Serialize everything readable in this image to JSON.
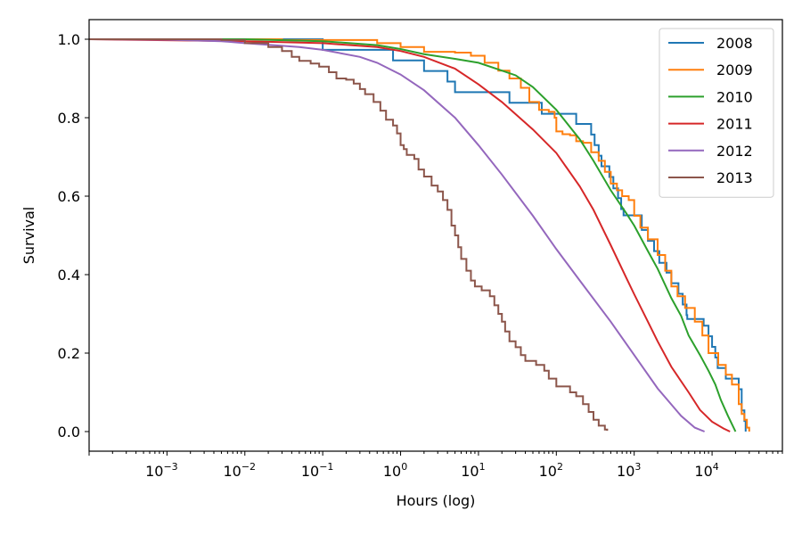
{
  "chart_data": {
    "type": "line",
    "title": "",
    "xlabel": "Hours (log)",
    "ylabel": "Survival",
    "xscale": "log",
    "xlim": [
      0.0001,
      80000
    ],
    "ylim": [
      -0.05,
      1.05
    ],
    "xticks": [
      {
        "value": 0.001,
        "base": "10",
        "exp": "−3"
      },
      {
        "value": 0.01,
        "base": "10",
        "exp": "−2"
      },
      {
        "value": 0.1,
        "base": "10",
        "exp": "−1"
      },
      {
        "value": 1,
        "base": "10",
        "exp": "0"
      },
      {
        "value": 10,
        "base": "10",
        "exp": "1"
      },
      {
        "value": 100,
        "base": "10",
        "exp": "2"
      },
      {
        "value": 1000,
        "base": "10",
        "exp": "3"
      },
      {
        "value": 10000,
        "base": "10",
        "exp": "4"
      }
    ],
    "yticks": [
      {
        "value": 0.0,
        "label": "0.0"
      },
      {
        "value": 0.2,
        "label": "0.2"
      },
      {
        "value": 0.4,
        "label": "0.4"
      },
      {
        "value": 0.6,
        "label": "0.6"
      },
      {
        "value": 0.8,
        "label": "0.8"
      },
      {
        "value": 1.0,
        "label": "1.0"
      }
    ],
    "grid": false,
    "legend_position": "top-right",
    "series": [
      {
        "name": "2008",
        "color": "#1f77b4",
        "step": true,
        "points": [
          [
            0.0001,
            1.0
          ],
          [
            0.1,
            1.0
          ],
          [
            0.1,
            0.973
          ],
          [
            0.8,
            0.973
          ],
          [
            0.8,
            0.946
          ],
          [
            2,
            0.946
          ],
          [
            2,
            0.919
          ],
          [
            4,
            0.919
          ],
          [
            4,
            0.892
          ],
          [
            5,
            0.892
          ],
          [
            5,
            0.865
          ],
          [
            25,
            0.865
          ],
          [
            25,
            0.838
          ],
          [
            65,
            0.838
          ],
          [
            65,
            0.81
          ],
          [
            110,
            0.81
          ],
          [
            110,
            0.81
          ],
          [
            180,
            0.81
          ],
          [
            180,
            0.784
          ],
          [
            280,
            0.784
          ],
          [
            280,
            0.757
          ],
          [
            310,
            0.757
          ],
          [
            310,
            0.73
          ],
          [
            350,
            0.73
          ],
          [
            350,
            0.703
          ],
          [
            380,
            0.703
          ],
          [
            380,
            0.676
          ],
          [
            480,
            0.676
          ],
          [
            480,
            0.649
          ],
          [
            540,
            0.649
          ],
          [
            540,
            0.62
          ],
          [
            620,
            0.62
          ],
          [
            620,
            0.595
          ],
          [
            680,
            0.595
          ],
          [
            680,
            0.567
          ],
          [
            730,
            0.567
          ],
          [
            730,
            0.551
          ],
          [
            1250,
            0.551
          ],
          [
            1250,
            0.514
          ],
          [
            1500,
            0.514
          ],
          [
            1500,
            0.486
          ],
          [
            1800,
            0.486
          ],
          [
            1800,
            0.46
          ],
          [
            2100,
            0.46
          ],
          [
            2100,
            0.43
          ],
          [
            2600,
            0.43
          ],
          [
            2600,
            0.405
          ],
          [
            3000,
            0.405
          ],
          [
            3000,
            0.378
          ],
          [
            3700,
            0.378
          ],
          [
            3700,
            0.351
          ],
          [
            4200,
            0.351
          ],
          [
            4200,
            0.324
          ],
          [
            4700,
            0.324
          ],
          [
            4700,
            0.297
          ],
          [
            4800,
            0.297
          ],
          [
            4800,
            0.287
          ],
          [
            7800,
            0.287
          ],
          [
            7800,
            0.27
          ],
          [
            9000,
            0.27
          ],
          [
            9000,
            0.243
          ],
          [
            10000,
            0.243
          ],
          [
            10000,
            0.216
          ],
          [
            11000,
            0.216
          ],
          [
            11000,
            0.189
          ],
          [
            11800,
            0.189
          ],
          [
            11800,
            0.162
          ],
          [
            15000,
            0.162
          ],
          [
            15000,
            0.135
          ],
          [
            22000,
            0.135
          ],
          [
            22000,
            0.108
          ],
          [
            24000,
            0.108
          ],
          [
            24000,
            0.054
          ],
          [
            26000,
            0.054
          ],
          [
            26000,
            0.027
          ],
          [
            27000,
            0.027
          ],
          [
            27000,
            0.0
          ]
        ]
      },
      {
        "name": "2009",
        "color": "#ff7f0e",
        "step": true,
        "points": [
          [
            0.0001,
            1.0
          ],
          [
            0.02,
            1.0
          ],
          [
            0.03,
            0.998
          ],
          [
            0.5,
            0.99
          ],
          [
            1,
            0.98
          ],
          [
            2,
            0.968
          ],
          [
            5,
            0.966
          ],
          [
            8,
            0.958
          ],
          [
            12,
            0.94
          ],
          [
            18,
            0.92
          ],
          [
            25,
            0.9
          ],
          [
            35,
            0.876
          ],
          [
            45,
            0.84
          ],
          [
            60,
            0.82
          ],
          [
            80,
            0.815
          ],
          [
            95,
            0.8
          ],
          [
            100,
            0.765
          ],
          [
            120,
            0.758
          ],
          [
            150,
            0.755
          ],
          [
            180,
            0.74
          ],
          [
            220,
            0.736
          ],
          [
            280,
            0.712
          ],
          [
            350,
            0.69
          ],
          [
            420,
            0.662
          ],
          [
            500,
            0.632
          ],
          [
            600,
            0.615
          ],
          [
            700,
            0.6
          ],
          [
            850,
            0.59
          ],
          [
            1000,
            0.55
          ],
          [
            1200,
            0.52
          ],
          [
            1500,
            0.49
          ],
          [
            2000,
            0.45
          ],
          [
            2500,
            0.41
          ],
          [
            3000,
            0.37
          ],
          [
            3600,
            0.345
          ],
          [
            4500,
            0.315
          ],
          [
            6000,
            0.28
          ],
          [
            7500,
            0.245
          ],
          [
            9000,
            0.2
          ],
          [
            12000,
            0.17
          ],
          [
            15000,
            0.145
          ],
          [
            18000,
            0.12
          ],
          [
            22000,
            0.07
          ],
          [
            24000,
            0.045
          ],
          [
            26000,
            0.03
          ],
          [
            28000,
            0.01
          ],
          [
            30000,
            0.0
          ]
        ]
      },
      {
        "name": "2010",
        "color": "#2ca02c",
        "step": false,
        "points": [
          [
            0.0001,
            1.0
          ],
          [
            0.01,
            1.0
          ],
          [
            0.1,
            0.995
          ],
          [
            0.5,
            0.985
          ],
          [
            1,
            0.975
          ],
          [
            2,
            0.962
          ],
          [
            5,
            0.95
          ],
          [
            10,
            0.94
          ],
          [
            20,
            0.92
          ],
          [
            30,
            0.908
          ],
          [
            50,
            0.878
          ],
          [
            100,
            0.82
          ],
          [
            200,
            0.745
          ],
          [
            300,
            0.69
          ],
          [
            500,
            0.615
          ],
          [
            800,
            0.555
          ],
          [
            1000,
            0.525
          ],
          [
            1500,
            0.46
          ],
          [
            2000,
            0.415
          ],
          [
            3000,
            0.34
          ],
          [
            4000,
            0.295
          ],
          [
            5000,
            0.245
          ],
          [
            7000,
            0.195
          ],
          [
            9000,
            0.155
          ],
          [
            11000,
            0.12
          ],
          [
            13000,
            0.08
          ],
          [
            16000,
            0.04
          ],
          [
            20000,
            0.0
          ]
        ]
      },
      {
        "name": "2011",
        "color": "#d62728",
        "step": false,
        "points": [
          [
            0.0001,
            1.0
          ],
          [
            0.01,
            0.995
          ],
          [
            0.1,
            0.99
          ],
          [
            0.5,
            0.98
          ],
          [
            1,
            0.97
          ],
          [
            2,
            0.955
          ],
          [
            5,
            0.925
          ],
          [
            10,
            0.885
          ],
          [
            20,
            0.84
          ],
          [
            50,
            0.77
          ],
          [
            100,
            0.71
          ],
          [
            200,
            0.625
          ],
          [
            300,
            0.565
          ],
          [
            500,
            0.475
          ],
          [
            800,
            0.39
          ],
          [
            1000,
            0.35
          ],
          [
            1500,
            0.28
          ],
          [
            2000,
            0.23
          ],
          [
            3000,
            0.165
          ],
          [
            5000,
            0.1
          ],
          [
            7000,
            0.055
          ],
          [
            10000,
            0.025
          ],
          [
            14000,
            0.008
          ],
          [
            17000,
            0.0
          ]
        ]
      },
      {
        "name": "2012",
        "color": "#9467bd",
        "step": false,
        "points": [
          [
            0.0001,
            1.0
          ],
          [
            0.001,
            0.999
          ],
          [
            0.005,
            0.995
          ],
          [
            0.01,
            0.99
          ],
          [
            0.05,
            0.98
          ],
          [
            0.1,
            0.973
          ],
          [
            0.3,
            0.955
          ],
          [
            0.5,
            0.94
          ],
          [
            1,
            0.91
          ],
          [
            2,
            0.87
          ],
          [
            5,
            0.8
          ],
          [
            10,
            0.73
          ],
          [
            20,
            0.655
          ],
          [
            50,
            0.55
          ],
          [
            100,
            0.465
          ],
          [
            200,
            0.385
          ],
          [
            500,
            0.28
          ],
          [
            1000,
            0.195
          ],
          [
            2000,
            0.11
          ],
          [
            4000,
            0.04
          ],
          [
            6000,
            0.01
          ],
          [
            8000,
            0.0
          ]
        ]
      },
      {
        "name": "2013",
        "color": "#8c564b",
        "step": true,
        "points": [
          [
            0.0001,
            1.0
          ],
          [
            0.005,
            0.998
          ],
          [
            0.01,
            0.99
          ],
          [
            0.02,
            0.98
          ],
          [
            0.03,
            0.97
          ],
          [
            0.04,
            0.955
          ],
          [
            0.05,
            0.945
          ],
          [
            0.07,
            0.938
          ],
          [
            0.09,
            0.93
          ],
          [
            0.12,
            0.916
          ],
          [
            0.15,
            0.9
          ],
          [
            0.2,
            0.897
          ],
          [
            0.25,
            0.887
          ],
          [
            0.3,
            0.873
          ],
          [
            0.35,
            0.86
          ],
          [
            0.45,
            0.84
          ],
          [
            0.55,
            0.818
          ],
          [
            0.65,
            0.795
          ],
          [
            0.8,
            0.78
          ],
          [
            0.9,
            0.76
          ],
          [
            1.0,
            0.73
          ],
          [
            1.1,
            0.72
          ],
          [
            1.2,
            0.705
          ],
          [
            1.5,
            0.695
          ],
          [
            1.7,
            0.668
          ],
          [
            2.0,
            0.65
          ],
          [
            2.5,
            0.627
          ],
          [
            3.0,
            0.612
          ],
          [
            3.5,
            0.59
          ],
          [
            4.0,
            0.565
          ],
          [
            4.5,
            0.525
          ],
          [
            5.0,
            0.5
          ],
          [
            5.5,
            0.47
          ],
          [
            6.0,
            0.44
          ],
          [
            7.0,
            0.41
          ],
          [
            8.0,
            0.385
          ],
          [
            9.0,
            0.37
          ],
          [
            11,
            0.36
          ],
          [
            14,
            0.345
          ],
          [
            16,
            0.322
          ],
          [
            18,
            0.3
          ],
          [
            20,
            0.28
          ],
          [
            22,
            0.255
          ],
          [
            25,
            0.23
          ],
          [
            30,
            0.215
          ],
          [
            35,
            0.195
          ],
          [
            40,
            0.18
          ],
          [
            55,
            0.17
          ],
          [
            70,
            0.155
          ],
          [
            80,
            0.135
          ],
          [
            100,
            0.115
          ],
          [
            150,
            0.1
          ],
          [
            180,
            0.09
          ],
          [
            220,
            0.07
          ],
          [
            260,
            0.05
          ],
          [
            300,
            0.03
          ],
          [
            350,
            0.015
          ],
          [
            420,
            0.005
          ],
          [
            450,
            0.002
          ]
        ]
      }
    ]
  }
}
